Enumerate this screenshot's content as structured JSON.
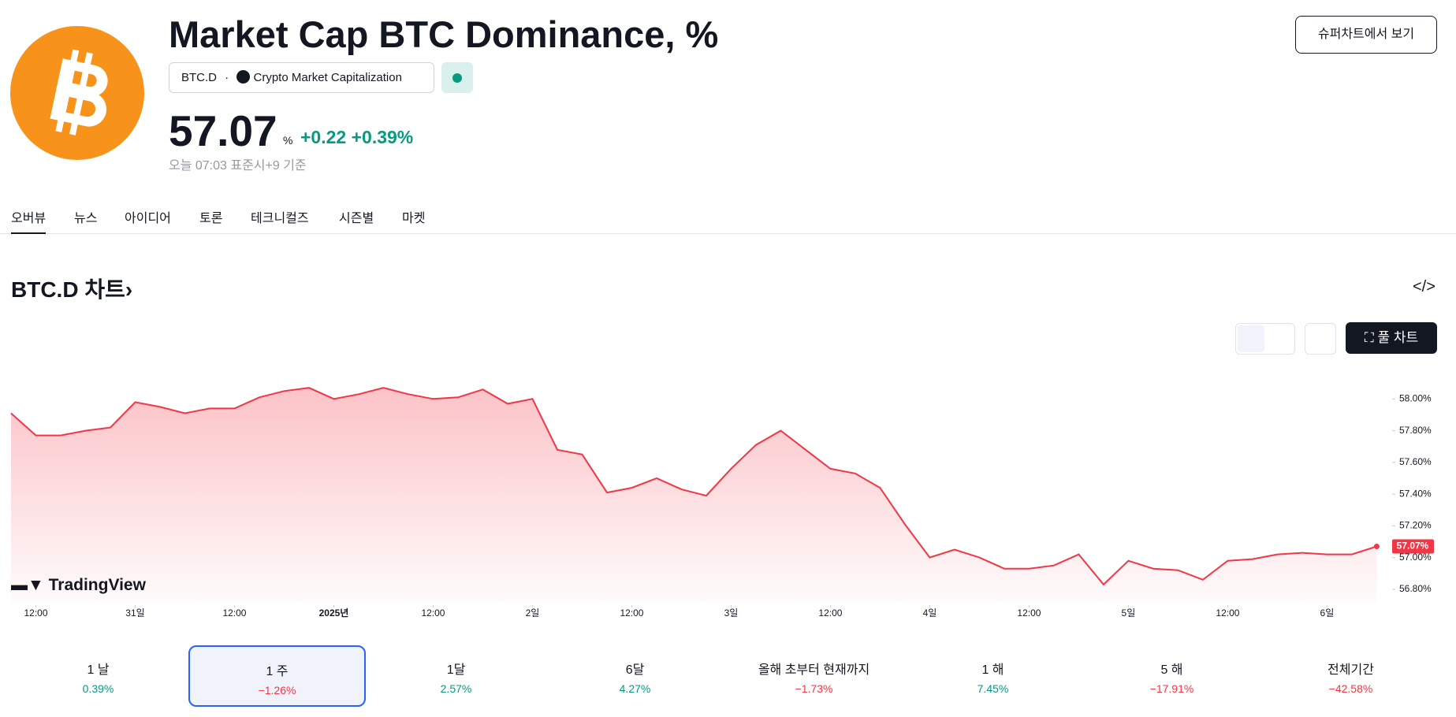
{
  "header": {
    "title": "Market Cap BTC Dominance, %",
    "symbol": "BTC.D",
    "exchange": "Crypto Market Capitalization",
    "price": "57.07",
    "price_unit": "%",
    "change": "+0.22",
    "change_pct": "+0.39%",
    "timestamp": "오늘 07:03 표준시+9 기준",
    "button": "슈퍼차트에서 보기"
  },
  "tabs": [
    "오버뷰",
    "뉴스",
    "아이디어",
    "토론",
    "테크니컬즈",
    "시즌별",
    "마켓"
  ],
  "section_title": "BTC.D 차트",
  "full_chart_button": "풀 차트",
  "watermark": "TradingView",
  "chart": {
    "type": "line",
    "color": "#f23645",
    "values": [
      57.91,
      57.77,
      57.77,
      57.8,
      57.82,
      57.98,
      57.95,
      57.91,
      57.94,
      57.94,
      58.01,
      58.05,
      58.07,
      58.0,
      58.03,
      58.07,
      58.03,
      58.0,
      58.01,
      58.06,
      57.97,
      58.0,
      57.68,
      57.65,
      57.41,
      57.44,
      57.5,
      57.43,
      57.39,
      57.56,
      57.71,
      57.8,
      57.68,
      57.56,
      57.53,
      57.44,
      57.21,
      57.0,
      57.05,
      57.0,
      56.93,
      56.93,
      56.95,
      57.02,
      56.83,
      56.98,
      56.93,
      56.92,
      56.86,
      56.98,
      56.99,
      57.02,
      57.03,
      57.02,
      57.02,
      57.07
    ],
    "last_label": {
      "value": 57.07,
      "label": "57.07%"
    },
    "xlim": [
      0,
      55.4
    ],
    "ylim": [
      56.72,
      58.26
    ],
    "xticks": [
      {
        "value": 1,
        "label": "12:00"
      },
      {
        "value": 5,
        "label": "31일"
      },
      {
        "value": 9,
        "label": "12:00"
      },
      {
        "value": 13,
        "label": "2025년"
      },
      {
        "value": 17,
        "label": "12:00"
      },
      {
        "value": 21,
        "label": "2일"
      },
      {
        "value": 25,
        "label": "12:00"
      },
      {
        "value": 29,
        "label": "3일"
      },
      {
        "value": 33,
        "label": "12:00"
      },
      {
        "value": 37,
        "label": "4일"
      },
      {
        "value": 41,
        "label": "12:00"
      },
      {
        "value": 45,
        "label": "5일"
      },
      {
        "value": 49,
        "label": "12:00"
      },
      {
        "value": 53,
        "label": "6일"
      }
    ],
    "yticks": [
      {
        "value": 56.8,
        "label": "56.80%"
      },
      {
        "value": 57.0,
        "label": "57.00%"
      },
      {
        "value": 57.2,
        "label": "57.20%"
      },
      {
        "value": 57.4,
        "label": "57.40%"
      },
      {
        "value": 57.6,
        "label": "57.60%"
      },
      {
        "value": 57.8,
        "label": "57.80%"
      },
      {
        "value": 58.0,
        "label": "58.00%"
      }
    ]
  },
  "periods": [
    {
      "label": "1 날",
      "change": "0.39%",
      "color": "#089981"
    },
    {
      "label": "1 주",
      "change": "−1.26%",
      "color": "#f23645",
      "selected": true
    },
    {
      "label": "1달",
      "change": "2.57%",
      "color": "#089981"
    },
    {
      "label": "6달",
      "change": "4.27%",
      "color": "#089981"
    },
    {
      "label": "올해 초부터 현재까지",
      "change": "−1.73%",
      "color": "#f23645"
    },
    {
      "label": "1 해",
      "change": "7.45%",
      "color": "#089981"
    },
    {
      "label": "5 해",
      "change": "−17.91%",
      "color": "#f23645"
    },
    {
      "label": "전체기간",
      "change": "−42.58%",
      "color": "#f23645"
    }
  ]
}
